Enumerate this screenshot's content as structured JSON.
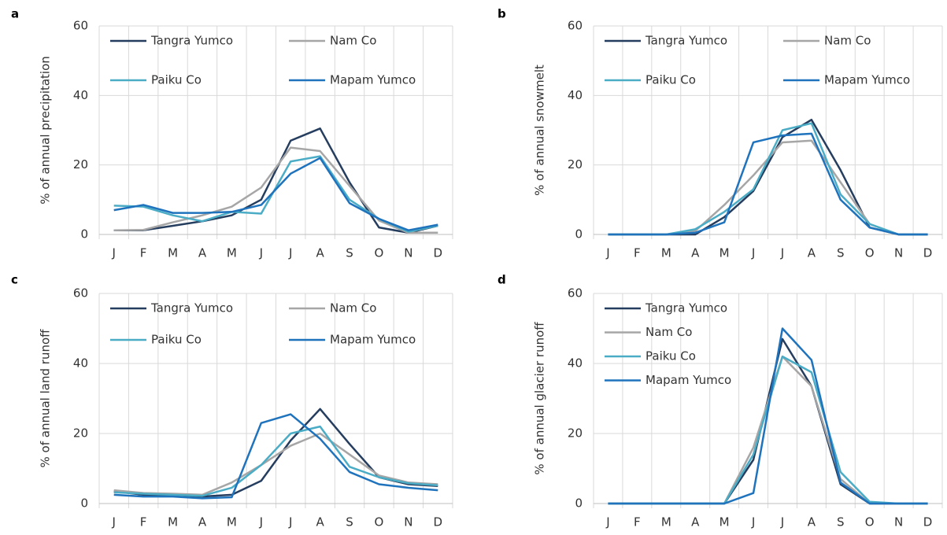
{
  "chart_data": [
    {
      "type": "line",
      "label": "a",
      "y_label": "% of annual precipitation",
      "categories": [
        "J",
        "F",
        "M",
        "A",
        "M",
        "J",
        "J",
        "A",
        "S",
        "O",
        "N",
        "D"
      ],
      "ylim": [
        0,
        60
      ],
      "yticks": [
        0,
        20,
        40,
        60
      ],
      "grid": true,
      "legend_columns": 2,
      "series": [
        {
          "name": "Tangra Yumco",
          "color": "#253d5e",
          "values": [
            1.2,
            1.2,
            2.5,
            3.8,
            5.5,
            10,
            27,
            30.5,
            15,
            2,
            0.5,
            2.5
          ]
        },
        {
          "name": "Nam Co",
          "color": "#a6a6a6",
          "values": [
            1.2,
            1.3,
            3.5,
            5.5,
            8,
            13.5,
            25,
            24,
            14,
            4,
            0.5,
            0.5
          ]
        },
        {
          "name": "Paiku Co",
          "color": "#4bacc6",
          "values": [
            8.3,
            8,
            5.5,
            3.8,
            6.5,
            6,
            21,
            22.5,
            10,
            4.5,
            0.8,
            2.5
          ]
        },
        {
          "name": "Mapam Yumco",
          "color": "#1f73bd",
          "values": [
            7,
            8.5,
            6.2,
            6.2,
            6.5,
            8.5,
            17.5,
            22,
            9,
            4.5,
            1.2,
            2.8
          ]
        }
      ]
    },
    {
      "type": "line",
      "label": "b",
      "y_label": "% of annual snowmelt",
      "categories": [
        "J",
        "F",
        "M",
        "A",
        "M",
        "J",
        "J",
        "A",
        "S",
        "O",
        "N",
        "D"
      ],
      "ylim": [
        0,
        60
      ],
      "yticks": [
        0,
        20,
        40,
        60
      ],
      "grid": true,
      "legend_columns": 2,
      "series": [
        {
          "name": "Tangra Yumco",
          "color": "#253d5e",
          "values": [
            0,
            0,
            0,
            0,
            5,
            12.5,
            28,
            33,
            18.5,
            2,
            0,
            0
          ]
        },
        {
          "name": "Nam Co",
          "color": "#a6a6a6",
          "values": [
            0,
            0,
            0,
            1,
            8.5,
            17,
            26.5,
            27,
            15,
            3,
            0,
            0
          ]
        },
        {
          "name": "Paiku Co",
          "color": "#4bacc6",
          "values": [
            0,
            0,
            0,
            1.5,
            6.5,
            13,
            30,
            32,
            11.5,
            3,
            0,
            0
          ]
        },
        {
          "name": "Mapam Yumco",
          "color": "#1f73bd",
          "values": [
            0,
            0,
            0,
            0.5,
            3.5,
            26.5,
            28.5,
            29,
            10,
            2,
            0,
            0
          ]
        }
      ]
    },
    {
      "type": "line",
      "label": "c",
      "y_label": "% of annual land runoff",
      "categories": [
        "J",
        "F",
        "M",
        "A",
        "M",
        "J",
        "J",
        "A",
        "S",
        "O",
        "N",
        "D"
      ],
      "ylim": [
        0,
        60
      ],
      "yticks": [
        0,
        20,
        40,
        60
      ],
      "grid": true,
      "legend_columns": 2,
      "series": [
        {
          "name": "Tangra Yumco",
          "color": "#253d5e",
          "values": [
            3.5,
            2.5,
            2.5,
            2,
            2.5,
            6.5,
            18,
            27,
            17,
            7.5,
            5.5,
            5
          ]
        },
        {
          "name": "Nam Co",
          "color": "#a6a6a6",
          "values": [
            3.8,
            3,
            2.8,
            2.5,
            6,
            11,
            16.5,
            20,
            14,
            8,
            6,
            5.5
          ]
        },
        {
          "name": "Paiku Co",
          "color": "#4bacc6",
          "values": [
            3.2,
            2.8,
            2.5,
            2.2,
            4.5,
            11,
            20,
            22,
            10.5,
            7.5,
            5.8,
            5.2
          ]
        },
        {
          "name": "Mapam Yumco",
          "color": "#1f73bd",
          "values": [
            2.5,
            2,
            2,
            1.5,
            1.8,
            23,
            25.5,
            18.5,
            9,
            5.5,
            4.5,
            3.8
          ]
        }
      ]
    },
    {
      "type": "line",
      "label": "d",
      "y_label": "% of annual glacier runoff",
      "categories": [
        "J",
        "F",
        "M",
        "A",
        "M",
        "J",
        "J",
        "A",
        "S",
        "O",
        "N",
        "D"
      ],
      "ylim": [
        0,
        60
      ],
      "yticks": [
        0,
        20,
        40,
        60
      ],
      "grid": true,
      "legend_columns": 1,
      "series": [
        {
          "name": "Tangra Yumco",
          "color": "#253d5e",
          "values": [
            0,
            0,
            0,
            0,
            0,
            12.5,
            47,
            33.5,
            5.5,
            0,
            0,
            0
          ]
        },
        {
          "name": "Nam Co",
          "color": "#a6a6a6",
          "values": [
            0,
            0,
            0,
            0,
            0,
            16,
            42,
            33.5,
            7,
            0,
            0,
            0
          ]
        },
        {
          "name": "Paiku Co",
          "color": "#4bacc6",
          "values": [
            0,
            0,
            0,
            0,
            0,
            14,
            42,
            37.5,
            9,
            0.5,
            0,
            0
          ]
        },
        {
          "name": "Mapam Yumco",
          "color": "#1f73bd",
          "values": [
            0,
            0,
            0,
            0,
            0,
            3,
            50,
            41,
            6,
            0,
            0,
            0
          ]
        }
      ]
    }
  ]
}
